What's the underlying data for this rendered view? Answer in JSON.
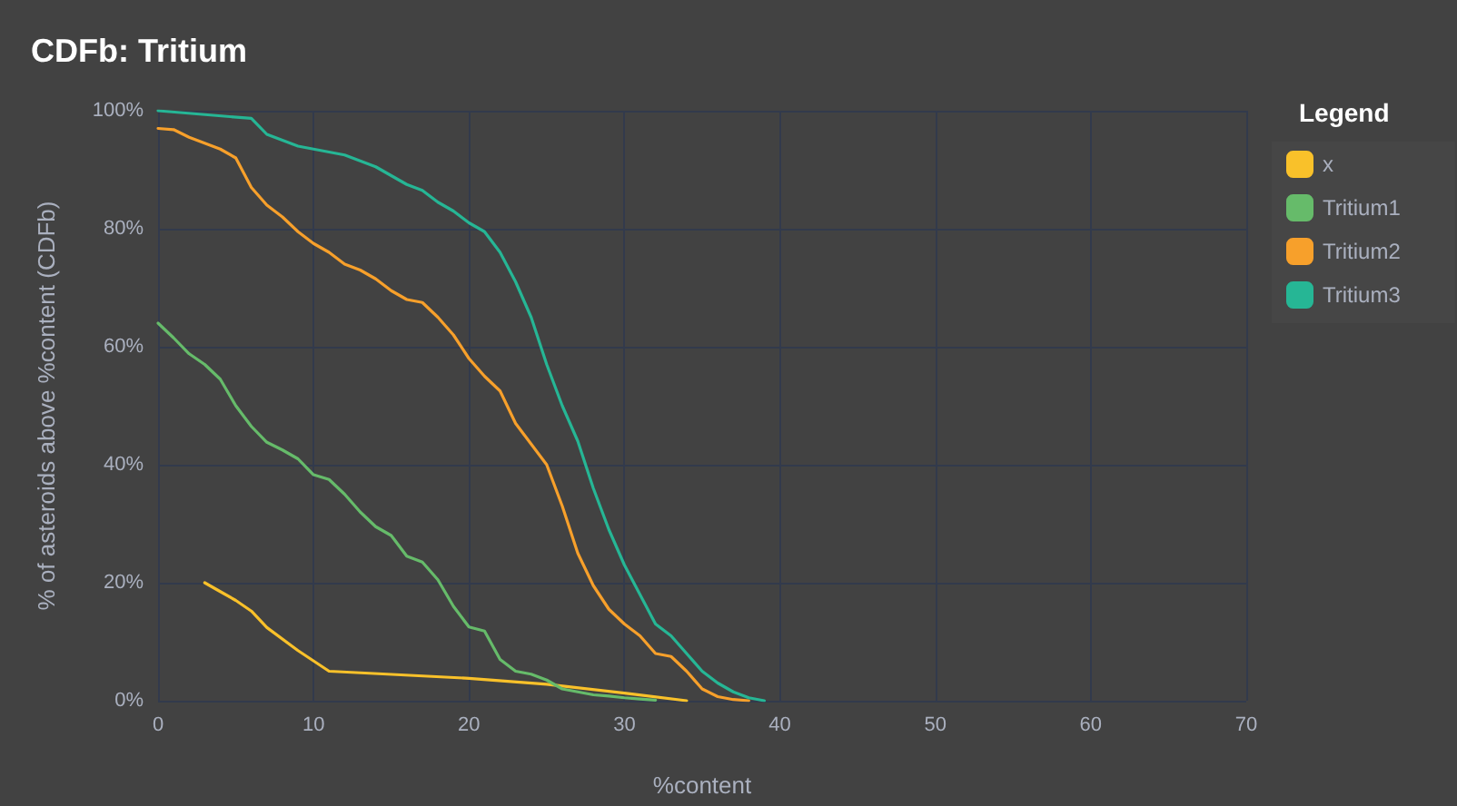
{
  "chart_data": {
    "type": "line",
    "title": "CDFb: Tritium",
    "xlabel": "%content",
    "ylabel": "% of asteroids above %content (CDFb)",
    "legend_title": "Legend",
    "legend": "right",
    "grid": true,
    "marker": "none",
    "line_style": "solid",
    "xlim": [
      0,
      70
    ],
    "xticks": [
      0,
      10,
      20,
      30,
      40,
      50,
      60,
      70
    ],
    "ylim": [
      0,
      100
    ],
    "yticks": [
      {
        "value": 0,
        "label": "0%"
      },
      {
        "value": 20,
        "label": "20%"
      },
      {
        "value": 40,
        "label": "40%"
      },
      {
        "value": 60,
        "label": "60%"
      },
      {
        "value": 80,
        "label": "80%"
      },
      {
        "value": 100,
        "label": "100%"
      }
    ],
    "series": [
      {
        "name": "x",
        "color": "#f9c12a",
        "x": [
          3,
          4,
          5,
          6,
          7,
          9,
          11,
          20,
          25,
          30,
          34
        ],
        "values": [
          20,
          18.5,
          17,
          15.2,
          12.4,
          8.5,
          5,
          3.8,
          2.8,
          1.3,
          0
        ]
      },
      {
        "name": "Tritium1",
        "color": "#66bb6a",
        "x": [
          0,
          1,
          2,
          3,
          4,
          5,
          6,
          7,
          8,
          9,
          10,
          11,
          12,
          13,
          14,
          15,
          16,
          17,
          18,
          19,
          20,
          21,
          22,
          23,
          24,
          25,
          26,
          27,
          28,
          29,
          30,
          31,
          32
        ],
        "values": [
          64,
          61.5,
          58.8,
          57,
          54.5,
          50,
          46.5,
          43.8,
          42.5,
          41,
          38.3,
          37.5,
          35,
          32,
          29.5,
          28,
          24.5,
          23.5,
          20.5,
          16,
          12.5,
          11.8,
          7,
          5,
          4.5,
          3.5,
          2,
          1.5,
          1,
          0.8,
          0.5,
          0.3,
          0.1
        ]
      },
      {
        "name": "Tritium2",
        "color": "#f7a02b",
        "x": [
          0,
          1,
          2,
          3,
          4,
          5,
          6,
          7,
          8,
          9,
          10,
          11,
          12,
          13,
          14,
          15,
          16,
          17,
          18,
          19,
          20,
          21,
          22,
          23,
          24,
          25,
          26,
          27,
          28,
          29,
          30,
          31,
          32,
          33,
          34,
          35,
          36,
          37,
          38
        ],
        "values": [
          97,
          96.8,
          95.5,
          94.5,
          93.5,
          92,
          87,
          84,
          82,
          79.5,
          77.5,
          76,
          74,
          73,
          71.5,
          69.5,
          68,
          67.5,
          65,
          62,
          58,
          55,
          52.5,
          47,
          43.5,
          40,
          33,
          25,
          19.5,
          15.5,
          13,
          11,
          8,
          7.5,
          5,
          2,
          0.7,
          0.2,
          0
        ]
      },
      {
        "name": "Tritium3",
        "color": "#26b695",
        "x": [
          0,
          6,
          7,
          9,
          10,
          12,
          14,
          16,
          17,
          18,
          19,
          20,
          21,
          22,
          23,
          24,
          25,
          26,
          27,
          28,
          29,
          30,
          31,
          32,
          33,
          34,
          35,
          36,
          37,
          38,
          39
        ],
        "values": [
          100,
          98.7,
          96,
          94,
          93.5,
          92.5,
          90.5,
          87.5,
          86.5,
          84.5,
          83,
          81,
          79.5,
          76,
          71,
          65,
          57,
          50,
          44,
          36,
          29,
          23,
          18,
          13,
          11,
          8,
          5,
          3,
          1.5,
          0.5,
          0
        ]
      }
    ]
  }
}
